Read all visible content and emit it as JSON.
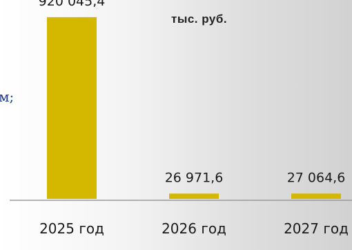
{
  "chart_data": {
    "type": "bar",
    "units": "тыс. руб.",
    "categories": [
      "2025 год",
      "2026 год",
      "2027 год"
    ],
    "values": [
      920045.4,
      26971.6,
      27064.6
    ],
    "value_labels": [
      "920 045,4",
      "26 971,6",
      "27 064,6"
    ],
    "ylim": [
      0,
      1000000
    ],
    "grid": false,
    "bar_color": "#d4b800",
    "axis_color": "#9a9a9a"
  },
  "fragment_text": "м;"
}
